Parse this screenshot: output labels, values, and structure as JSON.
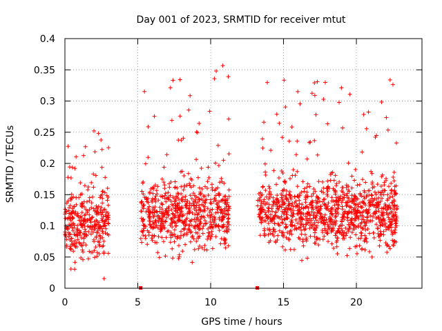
{
  "chart_data": {
    "type": "scatter",
    "title": "Day 001 of 2023, SRMTID for receiver mtut",
    "xlabel": "GPS time / hours",
    "ylabel": "SRMTID / TECUs",
    "xlim": [
      0,
      24.5
    ],
    "ylim": [
      0,
      0.4
    ],
    "xticks": [
      0,
      5,
      10,
      15,
      20
    ],
    "xtick_labels": [
      "0",
      "5",
      "10",
      "15",
      "20"
    ],
    "yticks": [
      0,
      0.05,
      0.1,
      0.15,
      0.2,
      0.25,
      0.3,
      0.35,
      0.4
    ],
    "ytick_labels": [
      "0",
      "0.05",
      "0.1",
      "0.15",
      "0.2",
      "0.25",
      "0.3",
      "0.35",
      "0.4"
    ],
    "grid": true,
    "marker": "+",
    "color": "#ff0000",
    "segments": [
      {
        "x_start": 0.0,
        "x_end": 3.0,
        "y_min": 0.005,
        "y_max": 0.255,
        "y_center": 0.1,
        "count": 330
      },
      {
        "x_start": 5.2,
        "x_end": 11.3,
        "y_min": 0.0,
        "y_max": 0.37,
        "y_center": 0.12,
        "count": 650
      },
      {
        "x_start": 13.2,
        "x_end": 22.8,
        "y_min": 0.01,
        "y_max": 0.335,
        "y_center": 0.12,
        "count": 1050
      }
    ],
    "gap_markers": [
      {
        "x": 5.2,
        "y": 0.0
      },
      {
        "x": 13.2,
        "y": 0.0
      }
    ]
  }
}
